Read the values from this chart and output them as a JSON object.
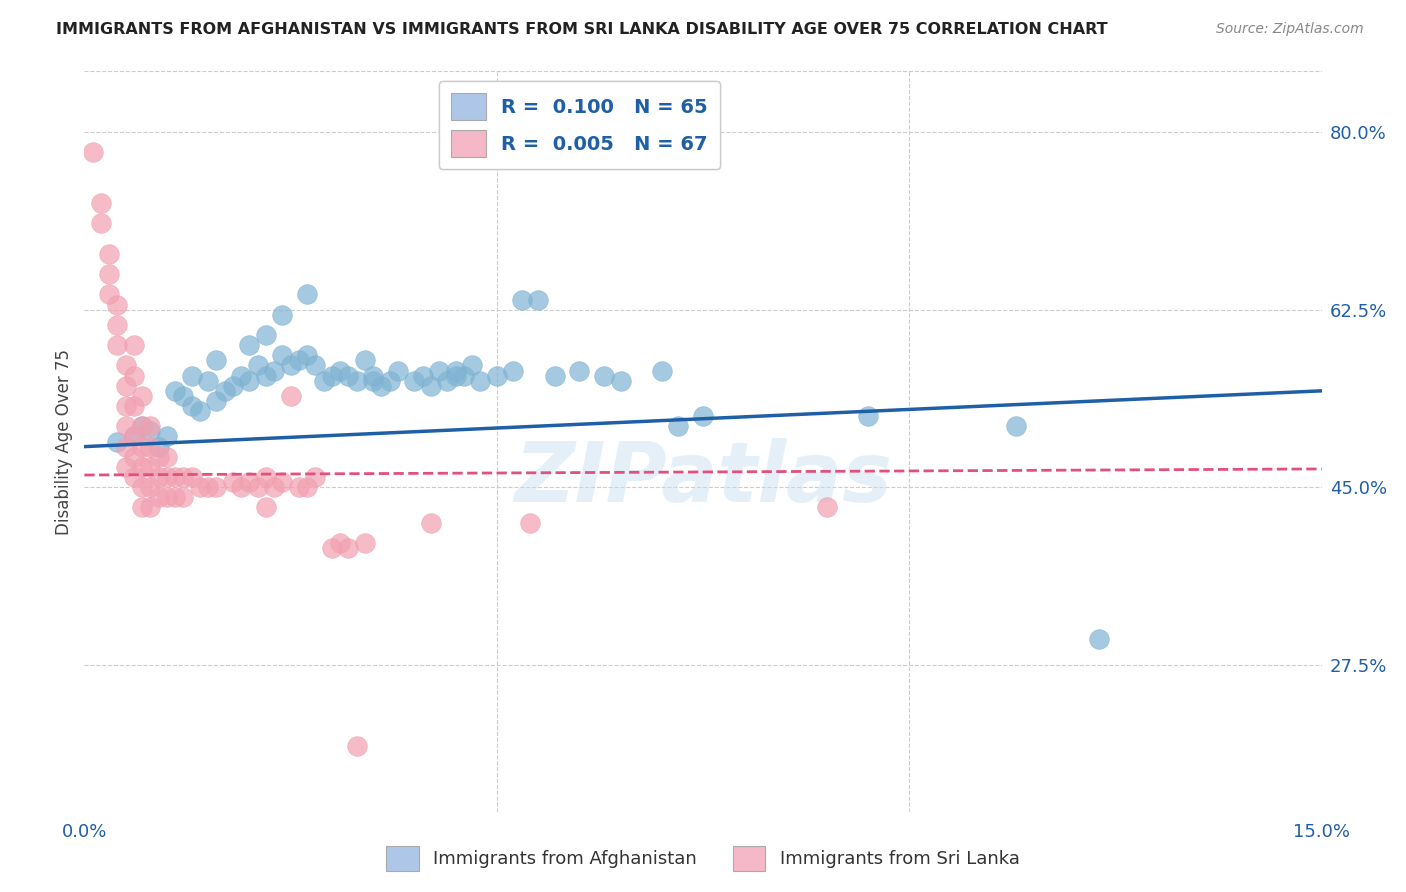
{
  "title": "IMMIGRANTS FROM AFGHANISTAN VS IMMIGRANTS FROM SRI LANKA DISABILITY AGE OVER 75 CORRELATION CHART",
  "source": "Source: ZipAtlas.com",
  "ylabel": "Disability Age Over 75",
  "ytick_values": [
    0.8,
    0.625,
    0.45,
    0.275
  ],
  "ytick_labels": [
    "80.0%",
    "62.5%",
    "45.0%",
    "27.5%"
  ],
  "xlim": [
    0.0,
    0.15
  ],
  "ylim": [
    0.13,
    0.86
  ],
  "watermark": "ZIPatlas",
  "legend_label_blue": "Immigrants from Afghanistan",
  "legend_label_pink": "Immigrants from Sri Lanka",
  "blue_color": "#7fb3d3",
  "pink_color": "#f1a0b0",
  "blue_scatter": [
    [
      0.004,
      0.495
    ],
    [
      0.006,
      0.5
    ],
    [
      0.007,
      0.51
    ],
    [
      0.008,
      0.505
    ],
    [
      0.009,
      0.49
    ],
    [
      0.01,
      0.5
    ],
    [
      0.011,
      0.545
    ],
    [
      0.012,
      0.54
    ],
    [
      0.013,
      0.53
    ],
    [
      0.013,
      0.56
    ],
    [
      0.014,
      0.525
    ],
    [
      0.015,
      0.555
    ],
    [
      0.016,
      0.535
    ],
    [
      0.016,
      0.575
    ],
    [
      0.017,
      0.545
    ],
    [
      0.018,
      0.55
    ],
    [
      0.019,
      0.56
    ],
    [
      0.02,
      0.555
    ],
    [
      0.02,
      0.59
    ],
    [
      0.021,
      0.57
    ],
    [
      0.022,
      0.56
    ],
    [
      0.022,
      0.6
    ],
    [
      0.023,
      0.565
    ],
    [
      0.024,
      0.58
    ],
    [
      0.024,
      0.62
    ],
    [
      0.025,
      0.57
    ],
    [
      0.026,
      0.575
    ],
    [
      0.027,
      0.58
    ],
    [
      0.027,
      0.64
    ],
    [
      0.028,
      0.57
    ],
    [
      0.029,
      0.555
    ],
    [
      0.03,
      0.56
    ],
    [
      0.031,
      0.565
    ],
    [
      0.032,
      0.56
    ],
    [
      0.033,
      0.555
    ],
    [
      0.034,
      0.575
    ],
    [
      0.035,
      0.56
    ],
    [
      0.035,
      0.555
    ],
    [
      0.036,
      0.55
    ],
    [
      0.037,
      0.555
    ],
    [
      0.038,
      0.565
    ],
    [
      0.04,
      0.555
    ],
    [
      0.041,
      0.56
    ],
    [
      0.042,
      0.55
    ],
    [
      0.043,
      0.565
    ],
    [
      0.044,
      0.555
    ],
    [
      0.045,
      0.56
    ],
    [
      0.045,
      0.565
    ],
    [
      0.046,
      0.56
    ],
    [
      0.047,
      0.57
    ],
    [
      0.048,
      0.555
    ],
    [
      0.05,
      0.56
    ],
    [
      0.052,
      0.565
    ],
    [
      0.053,
      0.635
    ],
    [
      0.055,
      0.635
    ],
    [
      0.057,
      0.56
    ],
    [
      0.06,
      0.565
    ],
    [
      0.063,
      0.56
    ],
    [
      0.065,
      0.555
    ],
    [
      0.07,
      0.565
    ],
    [
      0.072,
      0.51
    ],
    [
      0.075,
      0.52
    ],
    [
      0.095,
      0.52
    ],
    [
      0.113,
      0.51
    ],
    [
      0.123,
      0.3
    ]
  ],
  "pink_scatter": [
    [
      0.001,
      0.78
    ],
    [
      0.002,
      0.73
    ],
    [
      0.002,
      0.71
    ],
    [
      0.003,
      0.68
    ],
    [
      0.003,
      0.66
    ],
    [
      0.003,
      0.64
    ],
    [
      0.004,
      0.63
    ],
    [
      0.004,
      0.61
    ],
    [
      0.004,
      0.59
    ],
    [
      0.005,
      0.57
    ],
    [
      0.005,
      0.55
    ],
    [
      0.005,
      0.53
    ],
    [
      0.005,
      0.51
    ],
    [
      0.005,
      0.49
    ],
    [
      0.005,
      0.47
    ],
    [
      0.006,
      0.59
    ],
    [
      0.006,
      0.56
    ],
    [
      0.006,
      0.53
    ],
    [
      0.006,
      0.5
    ],
    [
      0.006,
      0.48
    ],
    [
      0.006,
      0.46
    ],
    [
      0.007,
      0.54
    ],
    [
      0.007,
      0.51
    ],
    [
      0.007,
      0.49
    ],
    [
      0.007,
      0.47
    ],
    [
      0.007,
      0.45
    ],
    [
      0.007,
      0.43
    ],
    [
      0.008,
      0.51
    ],
    [
      0.008,
      0.49
    ],
    [
      0.008,
      0.47
    ],
    [
      0.008,
      0.45
    ],
    [
      0.008,
      0.43
    ],
    [
      0.009,
      0.48
    ],
    [
      0.009,
      0.46
    ],
    [
      0.009,
      0.44
    ],
    [
      0.01,
      0.48
    ],
    [
      0.01,
      0.46
    ],
    [
      0.01,
      0.44
    ],
    [
      0.011,
      0.46
    ],
    [
      0.011,
      0.44
    ],
    [
      0.012,
      0.46
    ],
    [
      0.012,
      0.44
    ],
    [
      0.013,
      0.46
    ],
    [
      0.014,
      0.45
    ],
    [
      0.015,
      0.45
    ],
    [
      0.016,
      0.45
    ],
    [
      0.018,
      0.455
    ],
    [
      0.019,
      0.45
    ],
    [
      0.02,
      0.455
    ],
    [
      0.021,
      0.45
    ],
    [
      0.022,
      0.46
    ],
    [
      0.022,
      0.43
    ],
    [
      0.023,
      0.45
    ],
    [
      0.024,
      0.455
    ],
    [
      0.025,
      0.54
    ],
    [
      0.026,
      0.45
    ],
    [
      0.027,
      0.45
    ],
    [
      0.028,
      0.46
    ],
    [
      0.03,
      0.39
    ],
    [
      0.031,
      0.395
    ],
    [
      0.032,
      0.39
    ],
    [
      0.034,
      0.395
    ],
    [
      0.042,
      0.415
    ],
    [
      0.054,
      0.415
    ],
    [
      0.09,
      0.43
    ],
    [
      0.033,
      0.195
    ]
  ],
  "blue_line_x": [
    0.0,
    0.15
  ],
  "blue_line_y": [
    0.49,
    0.545
  ],
  "pink_line_x": [
    0.0,
    0.15
  ],
  "pink_line_y": [
    0.462,
    0.468
  ],
  "grid_color": "#cccccc",
  "background_color": "#ffffff",
  "title_color": "#222222",
  "blue_line_color": "#1f5fa6",
  "pink_line_color": "#e05080",
  "watermark_color": "#c5ddf0",
  "watermark_alpha": 0.45,
  "legend_patch_blue": "#aec6e8",
  "legend_patch_pink": "#f4b8c8",
  "legend_text_color": "#1f5fa6",
  "axis_tick_color": "#1f5fa6"
}
